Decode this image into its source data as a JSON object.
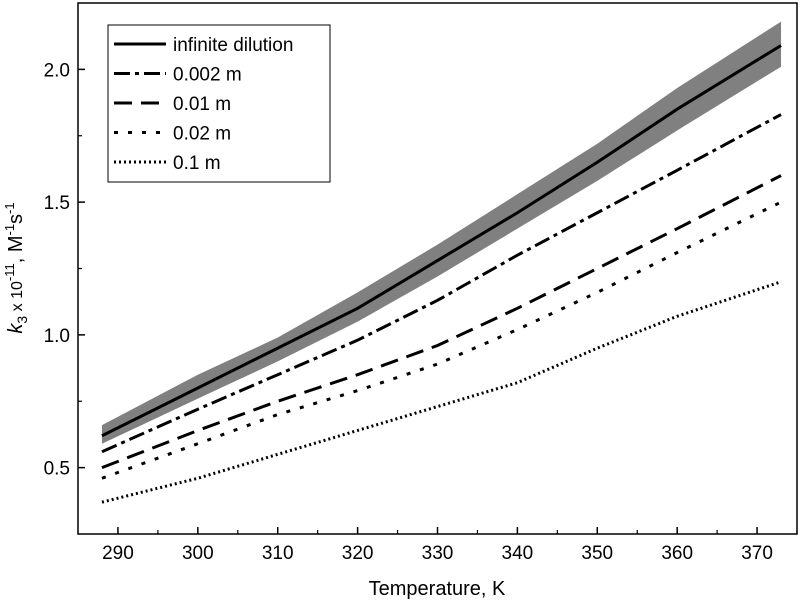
{
  "chart_data": {
    "type": "line",
    "xlabel": "Temperature, K",
    "ylabel": "k3 x 10-11 , M-1s-1",
    "ylabel_parts": {
      "k": "k",
      "sub": "3",
      "times": " x 10",
      "exp": "-11",
      "unit": ", M",
      "unit_exp1": "-1",
      "s": "s",
      "unit_exp2": "-1"
    },
    "xlim": [
      285,
      375
    ],
    "ylim": [
      0.25,
      2.25
    ],
    "xticks": [
      290,
      300,
      310,
      320,
      330,
      340,
      350,
      360,
      370
    ],
    "yticks": [
      0.5,
      1.0,
      1.5,
      2.0
    ],
    "xtick_labels": [
      "290",
      "300",
      "310",
      "320",
      "330",
      "340",
      "350",
      "360",
      "370"
    ],
    "ytick_labels": [
      "0.5",
      "1.0",
      "1.5",
      "2.0"
    ],
    "grid": false,
    "legend_position": "top-left",
    "band": {
      "color": "#808080",
      "x": [
        288,
        300,
        310,
        320,
        330,
        340,
        350,
        360,
        373
      ],
      "lower": [
        0.59,
        0.76,
        0.9,
        1.05,
        1.22,
        1.4,
        1.58,
        1.77,
        2.01
      ],
      "upper": [
        0.66,
        0.85,
        0.99,
        1.16,
        1.34,
        1.53,
        1.72,
        1.93,
        2.18
      ]
    },
    "series": [
      {
        "name": "infinite dilution",
        "dash": "solid",
        "x": [
          288,
          300,
          310,
          320,
          330,
          340,
          350,
          360,
          373
        ],
        "values": [
          0.62,
          0.8,
          0.95,
          1.1,
          1.28,
          1.46,
          1.65,
          1.85,
          2.09
        ]
      },
      {
        "name": "0.002 m",
        "dash": "dashdot",
        "x": [
          288,
          300,
          310,
          320,
          330,
          340,
          350,
          360,
          373
        ],
        "values": [
          0.56,
          0.72,
          0.85,
          0.98,
          1.13,
          1.3,
          1.46,
          1.62,
          1.83
        ]
      },
      {
        "name": "0.01 m",
        "dash": "dash",
        "x": [
          288,
          300,
          310,
          320,
          330,
          340,
          350,
          360,
          373
        ],
        "values": [
          0.5,
          0.64,
          0.75,
          0.85,
          0.96,
          1.1,
          1.25,
          1.4,
          1.6
        ]
      },
      {
        "name": "0.02 m",
        "dash": "dashdotdot",
        "x": [
          288,
          300,
          310,
          320,
          330,
          340,
          350,
          360,
          373
        ],
        "values": [
          0.46,
          0.59,
          0.7,
          0.79,
          0.89,
          1.02,
          1.16,
          1.31,
          1.5
        ]
      },
      {
        "name": "0.1 m",
        "dash": "dot",
        "x": [
          288,
          300,
          310,
          320,
          330,
          340,
          350,
          360,
          373
        ],
        "values": [
          0.37,
          0.46,
          0.55,
          0.64,
          0.73,
          0.82,
          0.95,
          1.07,
          1.2
        ]
      }
    ]
  }
}
